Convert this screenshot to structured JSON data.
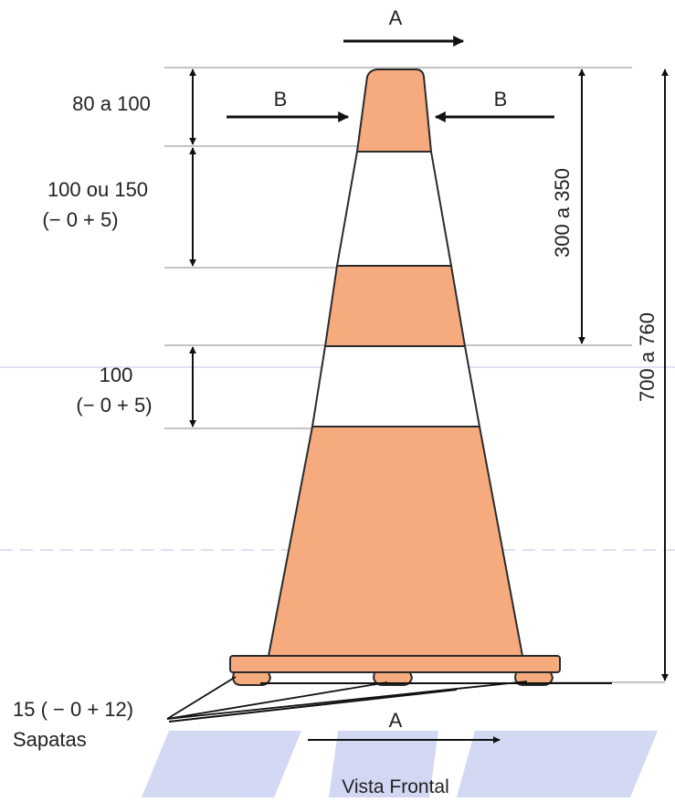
{
  "colors": {
    "cone_orange": "#F6AB7E",
    "cone_outline": "#2a2a2a",
    "watermark": "#b9c0e6",
    "line": "#111111",
    "guide": "#8a8a8a"
  },
  "arrows": {
    "top_label": "A",
    "left_label": "B",
    "right_label": "B",
    "bottom_label": "A"
  },
  "dimensions": {
    "top_band": "80 a 100",
    "white_band_1_line1": "100 ou 150",
    "white_band_1_line2": "(− 0 + 5)",
    "white_band_2_line1": "100",
    "white_band_2_line2": "(− 0 + 5)",
    "upper_height": "300 a 350",
    "total_height": "700 a 760"
  },
  "base": {
    "tolerance": "15 ( − 0 + 12)",
    "feet_label": "Sapatas"
  },
  "caption": "Vista Frontal",
  "cone_bands": [
    {
      "color": "orange"
    },
    {
      "color": "white"
    },
    {
      "color": "orange"
    },
    {
      "color": "white"
    },
    {
      "color": "orange"
    }
  ]
}
